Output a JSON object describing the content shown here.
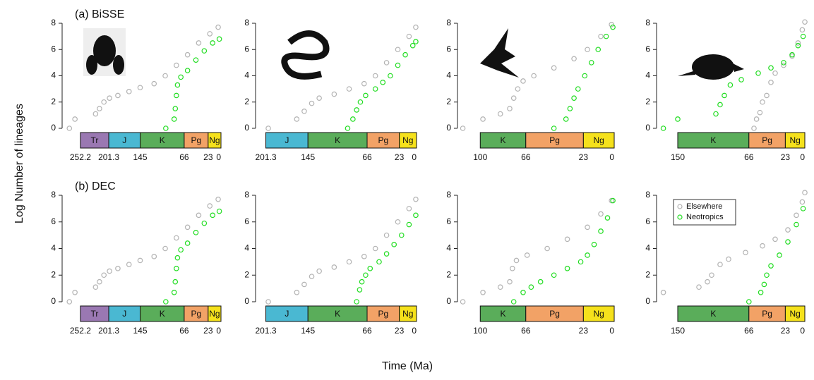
{
  "y_label": "Log Number of lineages",
  "x_label": "Time (Ma)",
  "chart_data": [
    {
      "type": "scatter",
      "title": "(a) BiSSE",
      "xlim": [
        285,
        0
      ],
      "ylim": [
        0,
        8
      ],
      "yticks": [
        0,
        2,
        4,
        6,
        8
      ],
      "xticks": [
        252.2,
        201.3,
        145,
        66,
        23,
        0
      ],
      "periods": [
        {
          "name": "Tr",
          "start": 252.2,
          "end": 201.3,
          "color": "#9a78b2"
        },
        {
          "name": "J",
          "start": 201.3,
          "end": 145,
          "color": "#4ab8d2"
        },
        {
          "name": "K",
          "start": 145,
          "end": 66,
          "color": "#5aad5a"
        },
        {
          "name": "Pg",
          "start": 66,
          "end": 23,
          "color": "#f2a266"
        },
        {
          "name": "Ng",
          "start": 23,
          "end": 0,
          "color": "#f5e11c"
        }
      ],
      "series": [
        {
          "name": "Elsewhere",
          "color": "#b3b3b3",
          "x": [
            272,
            262,
            225,
            218,
            210,
            200,
            185,
            165,
            145,
            120,
            100,
            80,
            60,
            40,
            20,
            5
          ],
          "values": [
            0,
            0.7,
            1.1,
            1.5,
            2,
            2.3,
            2.5,
            2.8,
            3.1,
            3.4,
            4,
            4.8,
            5.6,
            6.5,
            7.2,
            7.7
          ]
        },
        {
          "name": "Neotropics",
          "color": "#22dd22",
          "x": [
            99,
            84,
            82,
            80,
            78,
            72,
            60,
            45,
            30,
            15,
            3
          ],
          "values": [
            0,
            0.7,
            1.5,
            2.5,
            3.3,
            3.9,
            4.4,
            5.2,
            5.9,
            6.5,
            6.8
          ]
        }
      ]
    },
    {
      "type": "scatter",
      "xlim": [
        215,
        0
      ],
      "ylim": [
        0,
        8
      ],
      "yticks": [
        0,
        2,
        4,
        6,
        8
      ],
      "xticks": [
        201.3,
        145,
        66,
        23,
        0
      ],
      "periods": [
        {
          "name": "J",
          "start": 201.3,
          "end": 145,
          "color": "#4ab8d2"
        },
        {
          "name": "K",
          "start": 145,
          "end": 66,
          "color": "#5aad5a"
        },
        {
          "name": "Pg",
          "start": 66,
          "end": 23,
          "color": "#f2a266"
        },
        {
          "name": "Ng",
          "start": 23,
          "end": 0,
          "color": "#f5e11c"
        }
      ],
      "series": [
        {
          "name": "Elsewhere",
          "color": "#b3b3b3",
          "x": [
            198,
            160,
            150,
            140,
            130,
            110,
            90,
            70,
            55,
            40,
            25,
            10,
            1
          ],
          "values": [
            0,
            0.7,
            1.3,
            1.9,
            2.3,
            2.6,
            3.0,
            3.4,
            4.0,
            5.0,
            6.0,
            7.0,
            7.7
          ]
        },
        {
          "name": "Neotropics",
          "color": "#22dd22",
          "x": [
            92,
            85,
            80,
            75,
            68,
            55,
            45,
            35,
            25,
            15,
            5,
            1
          ],
          "values": [
            0,
            0.7,
            1.4,
            2.0,
            2.5,
            3.0,
            3.5,
            4.0,
            4.8,
            5.6,
            6.3,
            6.6
          ]
        }
      ]
    },
    {
      "type": "scatter",
      "xlim": [
        117,
        0
      ],
      "ylim": [
        0,
        8
      ],
      "yticks": [
        0,
        2,
        4,
        6,
        8
      ],
      "xticks": [
        100,
        66,
        23,
        0
      ],
      "periods": [
        {
          "name": "K",
          "start": 100,
          "end": 66,
          "color": "#5aad5a"
        },
        {
          "name": "Pg",
          "start": 66,
          "end": 23,
          "color": "#f2a266"
        },
        {
          "name": "Ng",
          "start": 23,
          "end": 0,
          "color": "#f5e11c"
        }
      ],
      "series": [
        {
          "name": "Elsewhere",
          "color": "#b3b3b3",
          "x": [
            113,
            98,
            85,
            78,
            75,
            72,
            68,
            60,
            45,
            30,
            20,
            10,
            2
          ],
          "values": [
            0,
            0.7,
            1.1,
            1.5,
            2.3,
            3.0,
            3.6,
            4.0,
            4.6,
            5.3,
            6.0,
            7.0,
            7.9
          ]
        },
        {
          "name": "Neotropics",
          "color": "#22dd22",
          "x": [
            45,
            36,
            33,
            30,
            27,
            22,
            17,
            12,
            6,
            1
          ],
          "values": [
            0,
            0.7,
            1.5,
            2.3,
            3.0,
            4.0,
            5.0,
            6.0,
            7.0,
            7.7
          ]
        }
      ]
    },
    {
      "type": "scatter",
      "xlim": [
        175,
        0
      ],
      "ylim": [
        0,
        8
      ],
      "yticks": [
        0,
        2,
        4,
        6,
        8
      ],
      "xticks": [
        150,
        66,
        23,
        0
      ],
      "periods": [
        {
          "name": "K",
          "start": 150,
          "end": 66,
          "color": "#5aad5a"
        },
        {
          "name": "Pg",
          "start": 66,
          "end": 23,
          "color": "#f2a266"
        },
        {
          "name": "Ng",
          "start": 23,
          "end": 0,
          "color": "#f5e11c"
        }
      ],
      "series": [
        {
          "name": "Elsewhere",
          "color": "#b3b3b3",
          "x": [
            60,
            57,
            53,
            50,
            45,
            40,
            35,
            25,
            15,
            8,
            3,
            0
          ],
          "values": [
            0,
            0.7,
            1.2,
            2,
            2.5,
            3.5,
            4.2,
            4.8,
            5.5,
            6.5,
            7.5,
            8.1
          ]
        },
        {
          "name": "Neotropics",
          "color": "#22dd22",
          "x": [
            167,
            150,
            105,
            100,
            95,
            88,
            75,
            55,
            40,
            25,
            15,
            8,
            2
          ],
          "values": [
            0,
            0.7,
            1.1,
            1.8,
            2.5,
            3.3,
            3.7,
            4.2,
            4.6,
            5.0,
            5.6,
            6.3,
            7.0
          ]
        }
      ]
    },
    {
      "type": "scatter",
      "title": "(b) DEC",
      "xlim": [
        285,
        0
      ],
      "ylim": [
        0,
        8
      ],
      "yticks": [
        0,
        2,
        4,
        6,
        8
      ],
      "xticks": [
        252.2,
        201.3,
        145,
        66,
        23,
        0
      ],
      "periods": [
        {
          "name": "Tr",
          "start": 252.2,
          "end": 201.3,
          "color": "#9a78b2"
        },
        {
          "name": "J",
          "start": 201.3,
          "end": 145,
          "color": "#4ab8d2"
        },
        {
          "name": "K",
          "start": 145,
          "end": 66,
          "color": "#5aad5a"
        },
        {
          "name": "Pg",
          "start": 66,
          "end": 23,
          "color": "#f2a266"
        },
        {
          "name": "Ng",
          "start": 23,
          "end": 0,
          "color": "#f5e11c"
        }
      ],
      "series": [
        {
          "name": "Elsewhere",
          "color": "#b3b3b3",
          "x": [
            272,
            262,
            225,
            218,
            210,
            200,
            185,
            165,
            145,
            120,
            100,
            80,
            60,
            40,
            20,
            5
          ],
          "values": [
            0,
            0.7,
            1.1,
            1.5,
            2,
            2.3,
            2.5,
            2.8,
            3.1,
            3.4,
            4,
            4.8,
            5.6,
            6.5,
            7.2,
            7.7
          ]
        },
        {
          "name": "Neotropics",
          "color": "#22dd22",
          "x": [
            99,
            84,
            82,
            80,
            78,
            72,
            60,
            45,
            30,
            15,
            3
          ],
          "values": [
            0,
            0.7,
            1.5,
            2.5,
            3.3,
            3.9,
            4.4,
            5.2,
            5.9,
            6.5,
            6.8
          ]
        }
      ]
    },
    {
      "type": "scatter",
      "xlim": [
        215,
        0
      ],
      "ylim": [
        0,
        8
      ],
      "yticks": [
        0,
        2,
        4,
        6,
        8
      ],
      "xticks": [
        201.3,
        145,
        66,
        23,
        0
      ],
      "periods": [
        {
          "name": "J",
          "start": 201.3,
          "end": 145,
          "color": "#4ab8d2"
        },
        {
          "name": "K",
          "start": 145,
          "end": 66,
          "color": "#5aad5a"
        },
        {
          "name": "Pg",
          "start": 66,
          "end": 23,
          "color": "#f2a266"
        },
        {
          "name": "Ng",
          "start": 23,
          "end": 0,
          "color": "#f5e11c"
        }
      ],
      "series": [
        {
          "name": "Elsewhere",
          "color": "#b3b3b3",
          "x": [
            198,
            160,
            150,
            140,
            130,
            110,
            90,
            70,
            55,
            40,
            25,
            10,
            1
          ],
          "values": [
            0,
            0.7,
            1.3,
            1.9,
            2.3,
            2.6,
            3.0,
            3.4,
            4.0,
            5.0,
            6.0,
            7.0,
            7.7
          ]
        },
        {
          "name": "Neotropics",
          "color": "#22dd22",
          "x": [
            80,
            76,
            73,
            68,
            62,
            50,
            40,
            30,
            20,
            10,
            1
          ],
          "values": [
            0,
            0.9,
            1.5,
            2.0,
            2.5,
            3.0,
            3.6,
            4.3,
            5.0,
            5.8,
            6.5
          ]
        }
      ]
    },
    {
      "type": "scatter",
      "xlim": [
        117,
        0
      ],
      "ylim": [
        0,
        8
      ],
      "yticks": [
        0,
        2,
        4,
        6,
        8
      ],
      "xticks": [
        100,
        66,
        23,
        0
      ],
      "periods": [
        {
          "name": "K",
          "start": 100,
          "end": 66,
          "color": "#5aad5a"
        },
        {
          "name": "Pg",
          "start": 66,
          "end": 23,
          "color": "#f2a266"
        },
        {
          "name": "Ng",
          "start": 23,
          "end": 0,
          "color": "#f5e11c"
        }
      ],
      "series": [
        {
          "name": "Elsewhere",
          "color": "#b3b3b3",
          "x": [
            113,
            98,
            85,
            78,
            76,
            73,
            65,
            50,
            35,
            20,
            10,
            2
          ],
          "values": [
            0,
            0.7,
            1.1,
            1.5,
            2.5,
            3.1,
            3.5,
            4.0,
            4.7,
            5.6,
            6.6,
            7.6
          ]
        },
        {
          "name": "Neotropics",
          "color": "#22dd22",
          "x": [
            75,
            68,
            62,
            55,
            45,
            35,
            25,
            20,
            15,
            10,
            5,
            1
          ],
          "values": [
            0,
            0.7,
            1.1,
            1.5,
            2.0,
            2.5,
            3.0,
            3.5,
            4.3,
            5.3,
            6.3,
            7.6
          ]
        }
      ]
    },
    {
      "type": "scatter",
      "xlim": [
        175,
        0
      ],
      "ylim": [
        0,
        8
      ],
      "yticks": [
        0,
        2,
        4,
        6,
        8
      ],
      "xticks": [
        150,
        66,
        23,
        0
      ],
      "legend": "top-left",
      "periods": [
        {
          "name": "K",
          "start": 150,
          "end": 66,
          "color": "#5aad5a"
        },
        {
          "name": "Pg",
          "start": 66,
          "end": 23,
          "color": "#f2a266"
        },
        {
          "name": "Ng",
          "start": 23,
          "end": 0,
          "color": "#f5e11c"
        }
      ],
      "series": [
        {
          "name": "Elsewhere",
          "color": "#b3b3b3",
          "x": [
            167,
            125,
            115,
            110,
            100,
            90,
            70,
            50,
            35,
            20,
            10,
            3,
            0
          ],
          "values": [
            0.7,
            1.1,
            1.5,
            2,
            2.8,
            3.2,
            3.7,
            4.2,
            4.7,
            5.4,
            6.5,
            7.5,
            8.2
          ]
        },
        {
          "name": "Neotropics",
          "color": "#22dd22",
          "x": [
            66,
            52,
            48,
            45,
            40,
            30,
            20,
            10,
            2
          ],
          "values": [
            0,
            0.7,
            1.3,
            2.0,
            2.7,
            3.5,
            4.5,
            5.8,
            7.0
          ]
        }
      ]
    }
  ]
}
